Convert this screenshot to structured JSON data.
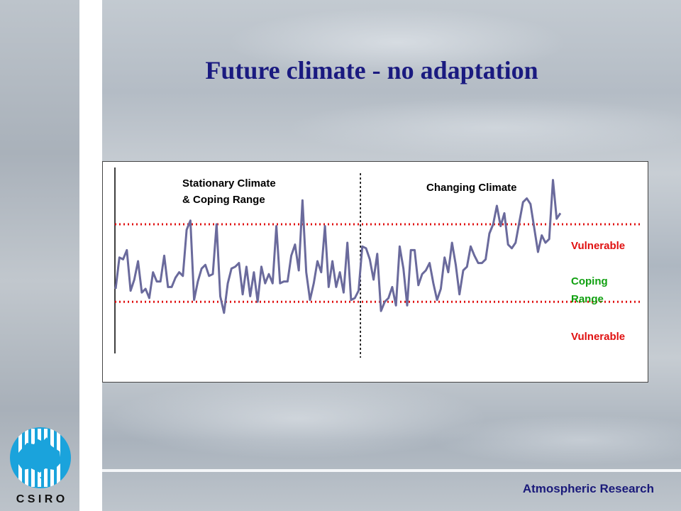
{
  "slide": {
    "title": "Future climate - no adaptation",
    "footer": "Atmospheric Research"
  },
  "logo": {
    "text": "C S I R O"
  },
  "colors": {
    "title": "#1a1a80",
    "series": "#6a6a9c",
    "vulnerable": "#e01010",
    "coping": "#10a010"
  },
  "chart_data": {
    "type": "line",
    "annotations": {
      "left_region": [
        "Stationary Climate",
        "& Coping Range"
      ],
      "right_region": "Changing Climate",
      "upper_label": "Vulnerable",
      "middle_label": [
        "Coping",
        "Range"
      ],
      "lower_label": "Vulnerable"
    },
    "ylim": [
      0,
      100
    ],
    "thresholds": {
      "upper": 70,
      "lower": 28
    },
    "change_point_index": 66,
    "series": [
      {
        "values": [
          35,
          52,
          51,
          56,
          34,
          40,
          50,
          33,
          35,
          30,
          44,
          39,
          39,
          53,
          36,
          36,
          41,
          44,
          42,
          67,
          72,
          29,
          39,
          46,
          48,
          42,
          43,
          70,
          31,
          22,
          38,
          46,
          47,
          49,
          32,
          47,
          31,
          44,
          28,
          47,
          38,
          43,
          38,
          69,
          38,
          39,
          39,
          53,
          59,
          45,
          83,
          44,
          29,
          38,
          50,
          44,
          69,
          36,
          50,
          36,
          44,
          33,
          60,
          29,
          30,
          34,
          58,
          57,
          51,
          40,
          54,
          23,
          28,
          30,
          36,
          26,
          58,
          46,
          26,
          56,
          56,
          37,
          43,
          45,
          49,
          38,
          29,
          35,
          52,
          44,
          60,
          48,
          32,
          45,
          47,
          58,
          53,
          49,
          49,
          51,
          65,
          70,
          80,
          69,
          76,
          59,
          57,
          60,
          71,
          82,
          84,
          81,
          68,
          55,
          64,
          60,
          62,
          94,
          73,
          76
        ]
      }
    ]
  }
}
